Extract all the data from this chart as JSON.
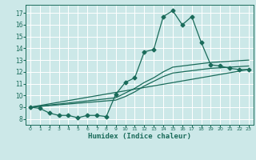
{
  "bg_color": "#cce8e8",
  "grid_color": "#ffffff",
  "line_color": "#1a6b5a",
  "xlabel": "Humidex (Indice chaleur)",
  "xlim": [
    -0.5,
    23.5
  ],
  "ylim": [
    7.5,
    17.7
  ],
  "yticks": [
    8,
    9,
    10,
    11,
    12,
    13,
    14,
    15,
    16,
    17
  ],
  "xticks": [
    0,
    1,
    2,
    3,
    4,
    5,
    6,
    7,
    8,
    9,
    10,
    11,
    12,
    13,
    14,
    15,
    16,
    17,
    18,
    19,
    20,
    21,
    22,
    23
  ],
  "line1_x": [
    0,
    1,
    2,
    3,
    4,
    5,
    6,
    7,
    8,
    9,
    10,
    11,
    12,
    13,
    14,
    15,
    16,
    17,
    18,
    19,
    20,
    21,
    22,
    23
  ],
  "line1_y": [
    9.0,
    8.9,
    8.5,
    8.3,
    8.3,
    8.1,
    8.3,
    8.3,
    8.2,
    10.1,
    11.1,
    11.5,
    13.7,
    13.9,
    16.7,
    17.2,
    16.0,
    16.7,
    14.5,
    12.6,
    12.5,
    12.3,
    12.2,
    12.2
  ],
  "line2_x": [
    0,
    9,
    10,
    11,
    12,
    13,
    14,
    15,
    16,
    17,
    18,
    19,
    20,
    21,
    22,
    23
  ],
  "line2_y": [
    9.0,
    9.8,
    10.2,
    10.6,
    11.1,
    11.5,
    12.0,
    12.4,
    12.5,
    12.6,
    12.7,
    12.8,
    12.85,
    12.9,
    12.95,
    13.0
  ],
  "line3_x": [
    0,
    9,
    10,
    11,
    12,
    13,
    14,
    15,
    16,
    17,
    18,
    19,
    20,
    21,
    22,
    23
  ],
  "line3_y": [
    9.0,
    9.6,
    9.9,
    10.3,
    10.8,
    11.2,
    11.6,
    11.9,
    12.0,
    12.1,
    12.2,
    12.3,
    12.35,
    12.4,
    12.45,
    12.5
  ],
  "line4_x": [
    0,
    23
  ],
  "line4_y": [
    9.0,
    12.2
  ]
}
